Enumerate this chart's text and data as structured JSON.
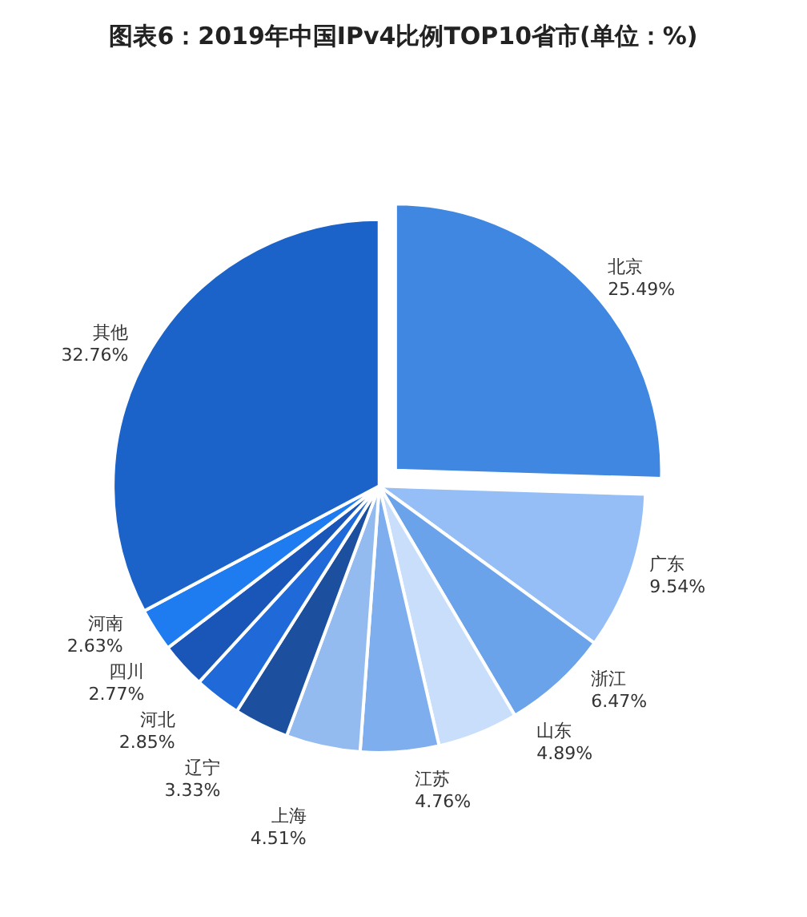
{
  "chart_data": {
    "type": "pie",
    "title": "图表6：2019年中国IPv4比例TOP10省市(单位：%)",
    "categories": [
      "北京",
      "广东",
      "浙江",
      "山东",
      "江苏",
      "上海",
      "辽宁",
      "河北",
      "四川",
      "河南",
      "其他"
    ],
    "values": [
      25.49,
      9.54,
      6.47,
      4.89,
      4.76,
      4.51,
      3.33,
      2.85,
      2.77,
      2.63,
      32.76
    ],
    "value_labels": [
      "25.49%",
      "9.54%",
      "6.47%",
      "4.89%",
      "4.76%",
      "4.51%",
      "3.33%",
      "2.85%",
      "2.77%",
      "2.63%",
      "32.76%"
    ],
    "colors": [
      "#3f87e0",
      "#94bef5",
      "#6aa3ea",
      "#c9defa",
      "#7eaeee",
      "#94bbf0",
      "#1d4f9f",
      "#1f6ad8",
      "#1a55b8",
      "#1f7cf0",
      "#1c63c9"
    ]
  }
}
